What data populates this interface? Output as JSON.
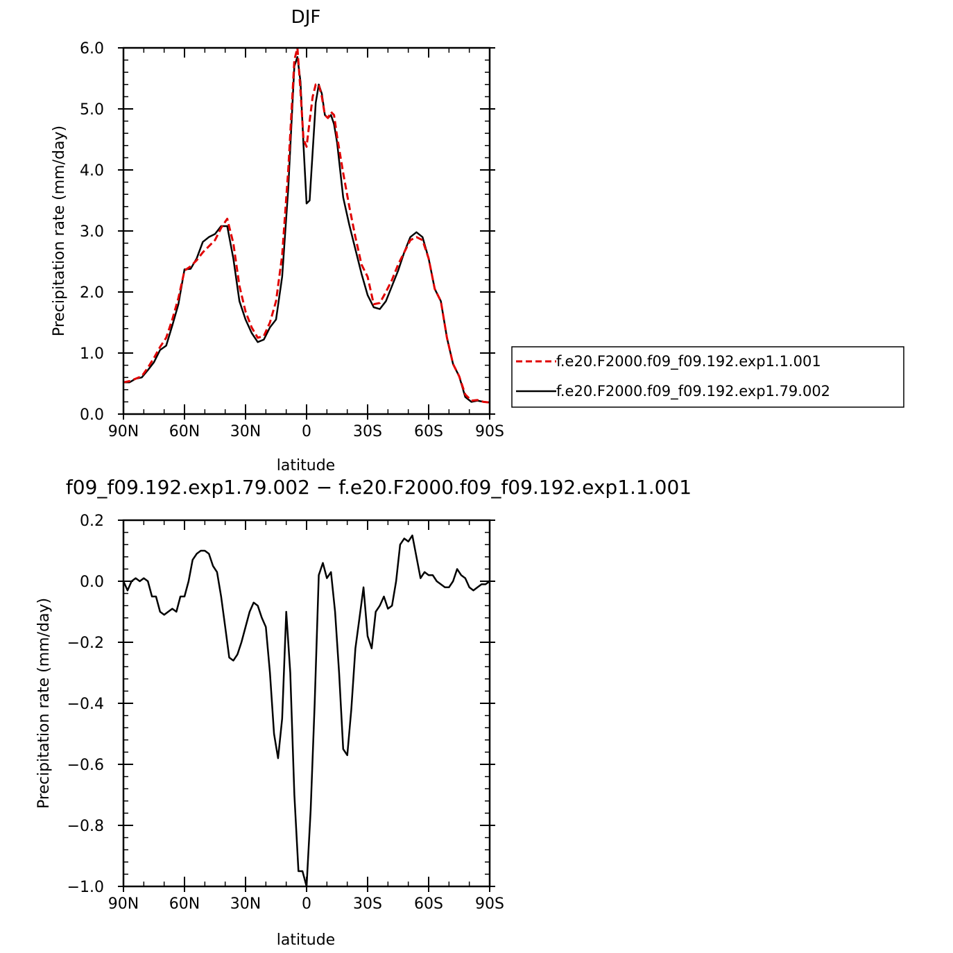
{
  "chart_data": [
    {
      "type": "line",
      "title": "DJF",
      "xlabel": "latitude",
      "ylabel": "Precipitation rate (mm/day)",
      "xlim": [
        90,
        -90
      ],
      "ylim": [
        0,
        6
      ],
      "x_ticks": [
        90,
        60,
        30,
        0,
        -30,
        -60,
        -90
      ],
      "x_tick_labels": [
        "90N",
        "60N",
        "30N",
        "0",
        "30S",
        "60S",
        "90S"
      ],
      "y_ticks": [
        0,
        1,
        2,
        3,
        4,
        5,
        6
      ],
      "y_tick_labels": [
        "0.0",
        "1.0",
        "2.0",
        "3.0",
        "4.0",
        "5.0",
        "6.0"
      ],
      "legend_position": "right",
      "series": [
        {
          "name": "f.e20.F2000.f09_f09.192.exp1.1.001",
          "color": "#e00000",
          "dash": true,
          "x": [
            90,
            87,
            84,
            81,
            78,
            75,
            72,
            69,
            66,
            63,
            60,
            57,
            54,
            51,
            48,
            45,
            42,
            39,
            36,
            33,
            30,
            27,
            24,
            21,
            18,
            15,
            12,
            9,
            6,
            4.5,
            3,
            1.5,
            0,
            -1.5,
            -3,
            -4.5,
            -6,
            -7.5,
            -9,
            -10.5,
            -12,
            -13.5,
            -15,
            -18,
            -21,
            -24,
            -27,
            -30,
            -33,
            -36,
            -39,
            -42,
            -45,
            -48,
            -51,
            -54,
            -57,
            -60,
            -63,
            -66,
            -69,
            -72,
            -75,
            -78,
            -81,
            -84,
            -87,
            -90
          ],
          "y": [
            0.52,
            0.54,
            0.58,
            0.62,
            0.76,
            0.92,
            1.1,
            1.25,
            1.55,
            1.9,
            2.35,
            2.42,
            2.52,
            2.65,
            2.75,
            2.85,
            3.05,
            3.2,
            2.8,
            2.1,
            1.68,
            1.42,
            1.25,
            1.28,
            1.5,
            1.85,
            2.6,
            4.0,
            5.8,
            6.0,
            5.3,
            4.5,
            4.38,
            4.8,
            5.2,
            5.4,
            5.4,
            5.2,
            4.9,
            4.85,
            4.95,
            4.9,
            4.55,
            3.95,
            3.4,
            2.9,
            2.45,
            2.25,
            1.8,
            1.82,
            2.0,
            2.2,
            2.45,
            2.65,
            2.85,
            2.9,
            2.85,
            2.55,
            2.05,
            1.85,
            1.25,
            0.82,
            0.62,
            0.32,
            0.22,
            0.23,
            0.2,
            0.19
          ]
        },
        {
          "name": "f.e20.F2000.f09_f09.192.exp1.79.002",
          "color": "#000000",
          "dash": false,
          "x": [
            90,
            87,
            84,
            81,
            78,
            75,
            72,
            69,
            66,
            63,
            60,
            57,
            54,
            51,
            48,
            45,
            42,
            39,
            36,
            33,
            30,
            27,
            24,
            21,
            18,
            15,
            12,
            9,
            6,
            4.5,
            3,
            1.5,
            0,
            -1.5,
            -3,
            -4.5,
            -6,
            -7.5,
            -9,
            -10.5,
            -12,
            -13.5,
            -15,
            -18,
            -21,
            -24,
            -27,
            -30,
            -33,
            -36,
            -39,
            -42,
            -45,
            -48,
            -51,
            -54,
            -57,
            -60,
            -63,
            -66,
            -69,
            -72,
            -75,
            -78,
            -81,
            -84,
            -87,
            -90
          ],
          "y": [
            0.52,
            0.52,
            0.58,
            0.6,
            0.72,
            0.85,
            1.05,
            1.12,
            1.45,
            1.8,
            2.37,
            2.38,
            2.55,
            2.82,
            2.9,
            2.95,
            3.08,
            3.08,
            2.55,
            1.85,
            1.55,
            1.33,
            1.18,
            1.22,
            1.42,
            1.55,
            2.25,
            3.7,
            5.7,
            5.85,
            5.45,
            4.4,
            3.45,
            3.5,
            4.3,
            5.1,
            5.4,
            5.25,
            4.9,
            4.85,
            4.9,
            4.75,
            4.45,
            3.55,
            3.1,
            2.7,
            2.3,
            1.95,
            1.75,
            1.72,
            1.85,
            2.1,
            2.35,
            2.65,
            2.9,
            2.98,
            2.9,
            2.55,
            2.05,
            1.85,
            1.25,
            0.82,
            0.62,
            0.28,
            0.2,
            0.22,
            0.2,
            0.19
          ]
        }
      ]
    },
    {
      "type": "line",
      "title": "f09_f09.192.exp1.79.002 − f.e20.F2000.f09_f09.192.exp1.1.001",
      "xlabel": "latitude",
      "ylabel": "Precipitation rate (mm/day)",
      "xlim": [
        90,
        -90
      ],
      "ylim": [
        -1.0,
        0.2
      ],
      "x_ticks": [
        90,
        60,
        30,
        0,
        -30,
        -60,
        -90
      ],
      "x_tick_labels": [
        "90N",
        "60N",
        "30N",
        "0",
        "30S",
        "60S",
        "90S"
      ],
      "y_ticks": [
        0.2,
        0.0,
        -0.2,
        -0.4,
        -0.6,
        -0.8,
        -1.0
      ],
      "y_tick_labels": [
        "0.2",
        "0.0",
        "−0.2",
        "−0.4",
        "−0.6",
        "−0.8",
        "−1.0"
      ],
      "series": [
        {
          "color": "#000000",
          "dash": false,
          "x": [
            90,
            88,
            86,
            84,
            82,
            80,
            78,
            76,
            74,
            72,
            70,
            68,
            66,
            64,
            62,
            60,
            58,
            56,
            54,
            52,
            50,
            48,
            46,
            44,
            42,
            40,
            38,
            36,
            34,
            32,
            30,
            28,
            26,
            24,
            22,
            20,
            18,
            16,
            14,
            12,
            10,
            8,
            6,
            4,
            2,
            0,
            -2,
            -4,
            -6,
            -8,
            -10,
            -12,
            -14,
            -16,
            -18,
            -20,
            -22,
            -24,
            -26,
            -28,
            -30,
            -32,
            -34,
            -36,
            -38,
            -40,
            -42,
            -44,
            -46,
            -48,
            -50,
            -52,
            -54,
            -56,
            -58,
            -60,
            -62,
            -64,
            -66,
            -68,
            -70,
            -72,
            -74,
            -76,
            -78,
            -80,
            -82,
            -84,
            -86,
            -88,
            -90
          ],
          "y": [
            0.0,
            -0.03,
            0.0,
            0.01,
            0.0,
            0.01,
            0.0,
            -0.05,
            -0.05,
            -0.1,
            -0.11,
            -0.1,
            -0.09,
            -0.1,
            -0.05,
            -0.05,
            0.0,
            0.07,
            0.09,
            0.1,
            0.1,
            0.09,
            0.05,
            0.03,
            -0.05,
            -0.15,
            -0.25,
            -0.26,
            -0.24,
            -0.2,
            -0.15,
            -0.1,
            -0.07,
            -0.08,
            -0.12,
            -0.15,
            -0.3,
            -0.5,
            -0.58,
            -0.45,
            -0.1,
            -0.3,
            -0.7,
            -0.95,
            -0.95,
            -1.0,
            -0.75,
            -0.4,
            0.02,
            0.06,
            0.01,
            0.03,
            -0.1,
            -0.3,
            -0.55,
            -0.57,
            -0.42,
            -0.22,
            -0.12,
            -0.02,
            -0.18,
            -0.22,
            -0.1,
            -0.08,
            -0.05,
            -0.09,
            -0.08,
            0.0,
            0.12,
            0.14,
            0.13,
            0.15,
            0.08,
            0.01,
            0.03,
            0.02,
            0.02,
            0.0,
            -0.01,
            -0.02,
            -0.02,
            0.0,
            0.04,
            0.02,
            0.01,
            -0.02,
            -0.03,
            -0.02,
            -0.01,
            -0.01,
            0.0
          ]
        }
      ]
    }
  ]
}
